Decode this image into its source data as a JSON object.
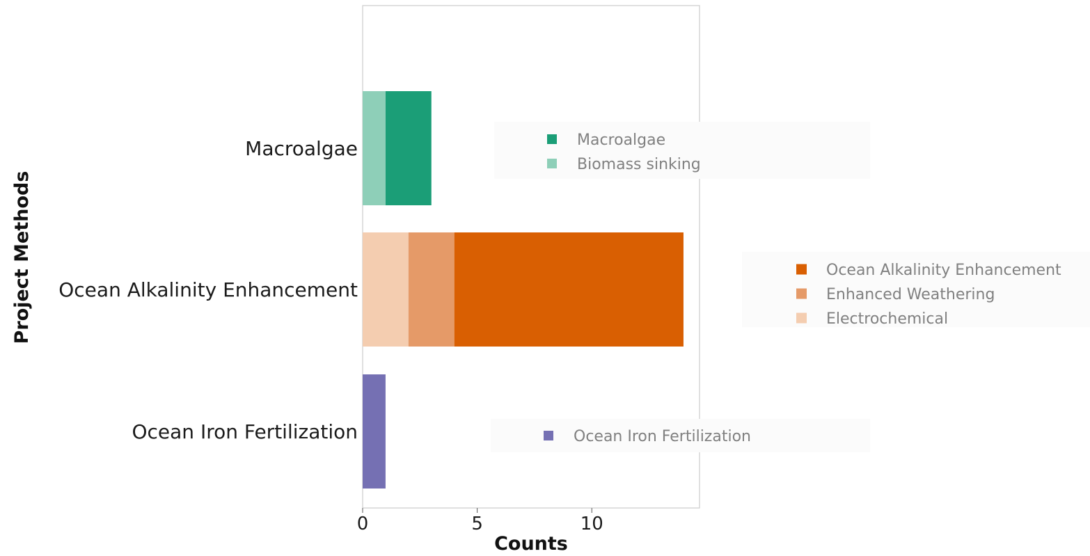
{
  "chart_data": {
    "type": "bar",
    "orientation": "horizontal",
    "stacked": true,
    "xlabel": "Counts",
    "ylabel": "Project Methods",
    "xlim": [
      0,
      14.7
    ],
    "xticks": [
      0,
      5,
      10
    ],
    "grid": false,
    "categories": [
      "Macroalgae",
      "Ocean Alkalinity Enhancement",
      "Ocean Iron Fertilization"
    ],
    "series": [
      {
        "name": "Biomass sinking",
        "category": "Macroalgae",
        "value": 1,
        "color": "#8ecfb8"
      },
      {
        "name": "Macroalgae",
        "category": "Macroalgae",
        "value": 2,
        "color": "#1b9e77"
      },
      {
        "name": "Electrochemical",
        "category": "Ocean Alkalinity Enhancement",
        "value": 2,
        "color": "#f4cdb0"
      },
      {
        "name": "Enhanced Weathering",
        "category": "Ocean Alkalinity Enhancement",
        "value": 2,
        "color": "#e59a68"
      },
      {
        "name": "Ocean Alkalinity Enhancement",
        "category": "Ocean Alkalinity Enhancement",
        "value": 10,
        "color": "#d95f02"
      },
      {
        "name": "Ocean Iron Fertilization",
        "category": "Ocean Iron Fertilization",
        "value": 1,
        "color": "#7570b3"
      }
    ],
    "legends": [
      {
        "category": "Macroalgae",
        "entries": [
          {
            "label": "Macroalgae",
            "color": "#1b9e77"
          },
          {
            "label": "Biomass sinking",
            "color": "#8ecfb8"
          }
        ]
      },
      {
        "category": "Ocean Alkalinity Enhancement",
        "entries": [
          {
            "label": "Ocean Alkalinity Enhancement",
            "color": "#d95f02"
          },
          {
            "label": "Enhanced Weathering",
            "color": "#e59a68"
          },
          {
            "label": "Electrochemical",
            "color": "#f4cdb0"
          }
        ]
      },
      {
        "category": "Ocean Iron Fertilization",
        "entries": [
          {
            "label": "Ocean Iron Fertilization",
            "color": "#7570b3"
          }
        ]
      }
    ]
  }
}
